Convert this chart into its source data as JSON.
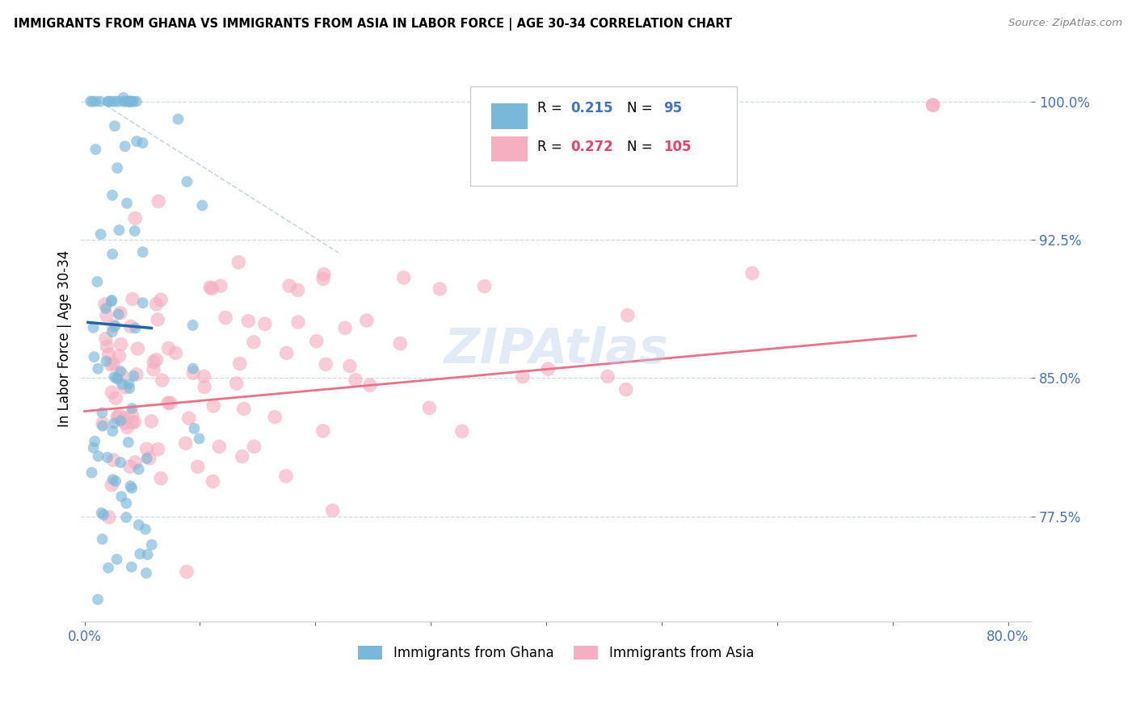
{
  "title": "IMMIGRANTS FROM GHANA VS IMMIGRANTS FROM ASIA IN LABOR FORCE | AGE 30-34 CORRELATION CHART",
  "source": "Source: ZipAtlas.com",
  "ylabel": "In Labor Force | Age 30-34",
  "xlim": [
    -0.003,
    0.82
  ],
  "ylim": [
    0.718,
    1.025
  ],
  "xticks": [
    0.0,
    0.1,
    0.2,
    0.3,
    0.4,
    0.5,
    0.6,
    0.7,
    0.8
  ],
  "xticklabels": [
    "0.0%",
    "",
    "",
    "",
    "",
    "",
    "",
    "",
    "80.0%"
  ],
  "ytick_positions": [
    0.775,
    0.85,
    0.925,
    1.0
  ],
  "yticklabels": [
    "77.5%",
    "85.0%",
    "92.5%",
    "100.0%"
  ],
  "ghana_R": 0.215,
  "ghana_N": 95,
  "asia_R": 0.272,
  "asia_N": 105,
  "ghana_color": "#7ab8d9",
  "asia_color": "#f5afc0",
  "ghana_line_color": "#2166ac",
  "asia_line_color": "#e8728a",
  "watermark": "ZIPAtlas",
  "tick_color": "#4472c4",
  "grid_color": "#d0d8e8",
  "diag_color": "#c8d8e8"
}
